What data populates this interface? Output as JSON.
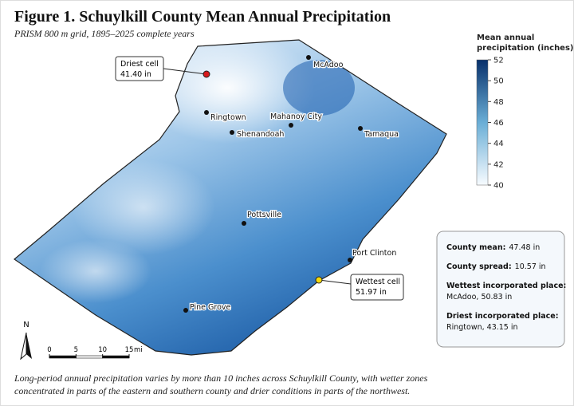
{
  "title": "Figure 1. Schuylkill County Mean Annual Precipitation",
  "subtitle": "PRISM 800 m grid, 1895–2025 complete years",
  "legend": {
    "title": [
      "Mean annual",
      "precipitation (inches)"
    ],
    "lim": [
      40,
      52
    ],
    "yticks": [
      40,
      42,
      44,
      46,
      48,
      50,
      52
    ],
    "colors": [
      "#f7fbff",
      "#08306b"
    ]
  },
  "places": [
    "McAdoo",
    "Ringtown",
    "Shenandoah",
    "Mahanoy City",
    "Tamaqua",
    "Pottsville",
    "Port Clinton",
    "Pine Grove"
  ],
  "callouts": [
    {
      "label": "Driest cell",
      "value": "41.40 in",
      "color": "#d7191c"
    },
    {
      "label": "Wettest cell",
      "value": "51.97 in",
      "color": "#f5d90a"
    }
  ],
  "stats": [
    {
      "heading": "County mean:",
      "value": "47.48 in"
    },
    {
      "heading": "County spread:",
      "value": "10.57 in"
    },
    {
      "heading": "Wettest incorporated place:",
      "value": "McAdoo, 50.83 in"
    },
    {
      "heading": "Driest incorporated place:",
      "value": "Ringtown, 43.15 in"
    }
  ],
  "scale_bar": {
    "ticks": [
      0,
      5,
      10,
      15
    ],
    "unit": "mi"
  },
  "north": "N",
  "caption": [
    "Long-period annual precipitation varies by more than 10 inches across Schuylkill County, with wetter zones",
    "concentrated in parts of the eastern and southern county and drier conditions in parts of the northwest."
  ]
}
